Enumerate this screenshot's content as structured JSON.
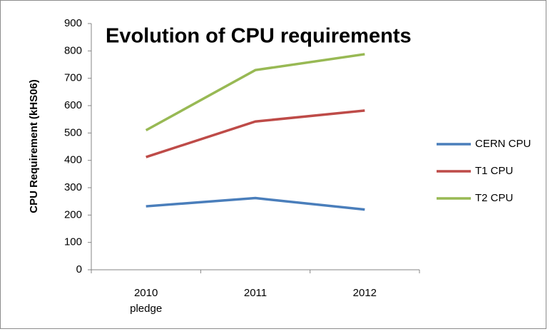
{
  "chart_data": {
    "type": "line",
    "title": "Evolution of CPU requirements",
    "y_label": "CPU Requirement (kHS06)",
    "categories": [
      "2010\npledge",
      "2011",
      "2012"
    ],
    "series": [
      {
        "name": "CERN CPU",
        "color": "#4a7ebb",
        "values": [
          232,
          262,
          220
        ]
      },
      {
        "name": "T1 CPU",
        "color": "#be4b48",
        "values": [
          412,
          542,
          582
        ]
      },
      {
        "name": "T2 CPU",
        "color": "#98b954",
        "values": [
          510,
          730,
          788
        ]
      }
    ],
    "ylim": [
      0,
      900
    ],
    "yticks": [
      0,
      100,
      200,
      300,
      400,
      500,
      600,
      700,
      800,
      900
    ],
    "grid": false,
    "legend": "right"
  }
}
